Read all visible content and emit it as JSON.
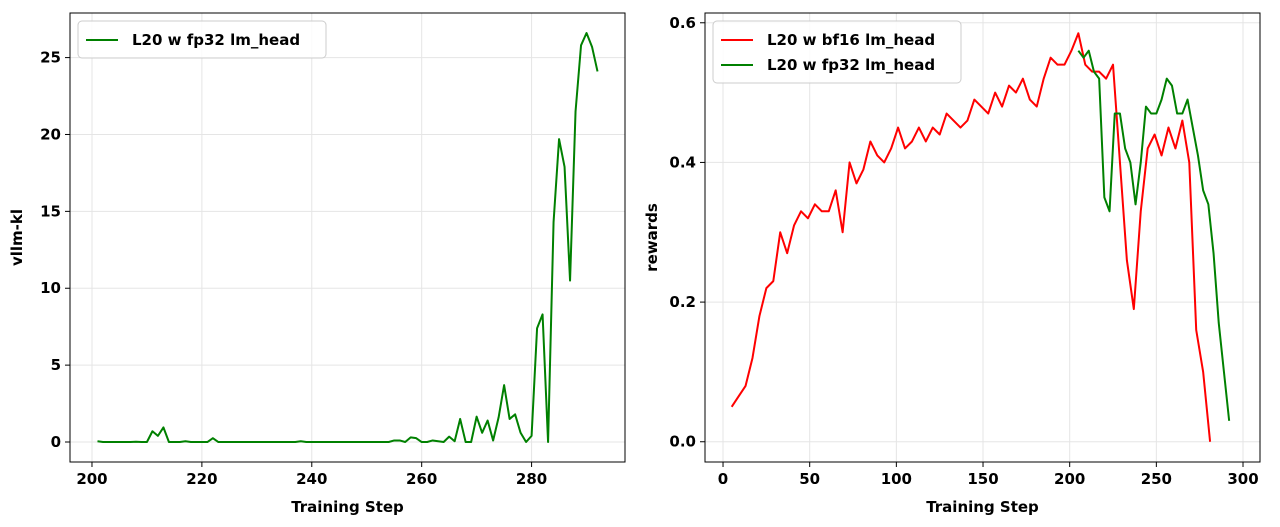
{
  "chart_data": [
    {
      "type": "line",
      "x_label": "Training Step",
      "y_label": "vllm-kl",
      "xlim": [
        196,
        297
      ],
      "ylim": [
        -1.3,
        27.9
      ],
      "xticks": [
        200,
        220,
        240,
        260,
        280
      ],
      "yticks": [
        0,
        5,
        10,
        15,
        20,
        25
      ],
      "grid": true,
      "legend": "upper left",
      "series": [
        {
          "name": "L20 w fp32 lm_head",
          "color": "#008000",
          "x": [
            201,
            202,
            203,
            204,
            205,
            206,
            207,
            208,
            209,
            210,
            211,
            212,
            213,
            214,
            215,
            216,
            217,
            218,
            219,
            220,
            221,
            222,
            223,
            224,
            225,
            226,
            227,
            228,
            229,
            230,
            231,
            232,
            233,
            234,
            235,
            236,
            237,
            238,
            239,
            240,
            241,
            242,
            243,
            244,
            245,
            246,
            247,
            248,
            249,
            250,
            251,
            252,
            253,
            254,
            255,
            256,
            257,
            258,
            259,
            260,
            261,
            262,
            263,
            264,
            265,
            266,
            267,
            268,
            269,
            270,
            271,
            272,
            273,
            274,
            275,
            276,
            277,
            278,
            279,
            280,
            281,
            282,
            283,
            284,
            285,
            286,
            287,
            288,
            289,
            290,
            291,
            292
          ],
          "values": [
            0.05,
            0,
            0,
            0,
            0,
            0,
            0,
            0.02,
            0,
            0,
            0.7,
            0.4,
            0.95,
            0,
            0,
            0,
            0.05,
            0,
            0,
            0,
            0,
            0.25,
            0,
            0,
            0,
            0,
            0,
            0,
            0,
            0,
            0,
            0,
            0,
            0,
            0,
            0,
            0,
            0.05,
            0,
            0,
            0,
            0,
            0,
            0,
            0,
            0,
            0,
            0,
            0,
            0,
            0,
            0,
            0,
            0,
            0.1,
            0.1,
            0,
            0.3,
            0.25,
            0,
            0,
            0.1,
            0.05,
            0,
            0.35,
            0.05,
            1.5,
            0,
            0,
            1.65,
            0.6,
            1.4,
            0.1,
            1.6,
            3.7,
            1.5,
            1.8,
            0.6,
            0,
            0.4,
            7.4,
            8.3,
            0,
            14.3,
            19.7,
            17.9,
            10.5,
            21.5,
            25.8,
            26.6,
            25.7,
            24.1
          ]
        }
      ]
    },
    {
      "type": "line",
      "x_label": "Training Step",
      "y_label": "rewards",
      "xlim": [
        -10.4,
        309.8
      ],
      "ylim": [
        -0.029,
        0.614
      ],
      "xticks": [
        0,
        50,
        100,
        150,
        200,
        250,
        300
      ],
      "yticks": [
        {
          "value": 0,
          "label": "0.0"
        },
        0.2,
        0.4,
        0.6
      ],
      "grid": true,
      "legend": "upper left",
      "series": [
        {
          "name": "L20 w bf16 lm_head",
          "color": "#ff0000",
          "x": [
            5,
            9,
            13,
            17,
            21,
            25,
            29,
            33,
            37,
            41,
            45,
            49,
            53,
            57,
            61,
            65,
            69,
            73,
            77,
            81,
            85,
            89,
            93,
            97,
            101,
            105,
            109,
            113,
            117,
            121,
            125,
            129,
            133,
            137,
            141,
            145,
            149,
            153,
            157,
            161,
            165,
            169,
            173,
            177,
            181,
            185,
            189,
            193,
            197,
            201,
            205,
            209,
            213,
            217,
            221,
            225,
            229,
            233,
            237,
            241,
            245,
            249,
            253,
            257,
            261,
            265,
            269,
            273,
            277,
            281
          ],
          "values": [
            0.05,
            0.065,
            0.08,
            0.12,
            0.18,
            0.22,
            0.23,
            0.3,
            0.27,
            0.31,
            0.33,
            0.32,
            0.34,
            0.33,
            0.33,
            0.36,
            0.3,
            0.4,
            0.37,
            0.39,
            0.43,
            0.41,
            0.4,
            0.42,
            0.45,
            0.42,
            0.43,
            0.45,
            0.43,
            0.45,
            0.44,
            0.47,
            0.46,
            0.45,
            0.46,
            0.49,
            0.48,
            0.47,
            0.5,
            0.48,
            0.51,
            0.5,
            0.52,
            0.49,
            0.48,
            0.52,
            0.55,
            0.54,
            0.54,
            0.56,
            0.585,
            0.54,
            0.53,
            0.53,
            0.52,
            0.54,
            0.4,
            0.26,
            0.19,
            0.33,
            0.42,
            0.44,
            0.41,
            0.45,
            0.42,
            0.46,
            0.4,
            0.16,
            0.1,
            0
          ]
        },
        {
          "name": "L20 w fp32 lm_head",
          "color": "#008000",
          "x": [
            205,
            208,
            211,
            214,
            217,
            220,
            223,
            226,
            229,
            232,
            235,
            238,
            241,
            244,
            247,
            250,
            253,
            256,
            259,
            262,
            265,
            268,
            271,
            274,
            277,
            280,
            283,
            286,
            289,
            292
          ],
          "values": [
            0.56,
            0.55,
            0.56,
            0.53,
            0.52,
            0.35,
            0.33,
            0.47,
            0.47,
            0.42,
            0.4,
            0.34,
            0.4,
            0.48,
            0.47,
            0.47,
            0.49,
            0.52,
            0.51,
            0.47,
            0.47,
            0.49,
            0.45,
            0.41,
            0.36,
            0.34,
            0.27,
            0.17,
            0.1,
            0.03
          ]
        }
      ]
    }
  ]
}
